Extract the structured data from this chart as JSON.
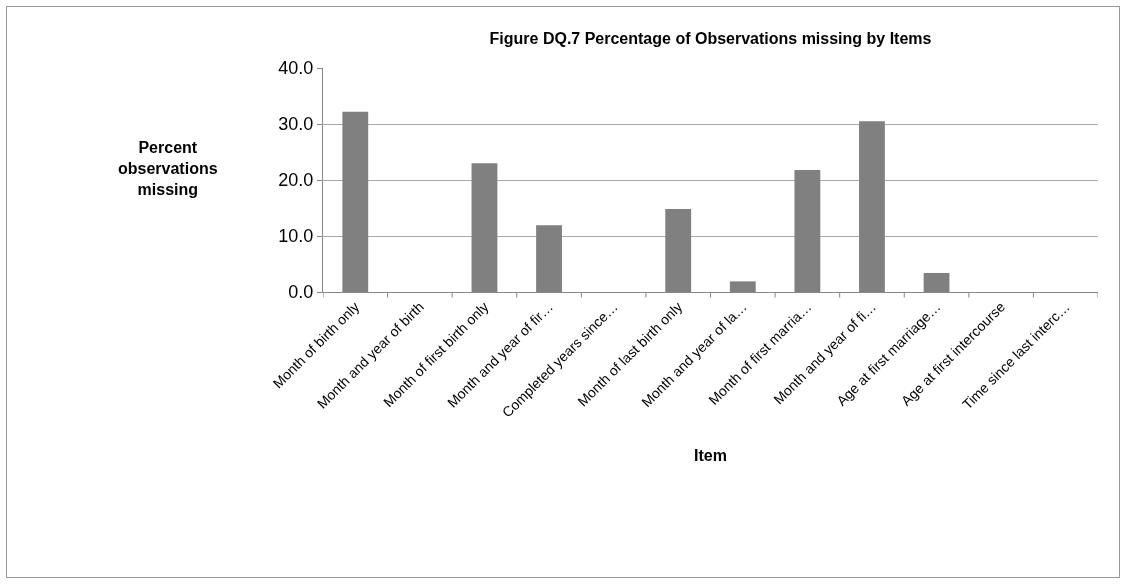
{
  "chart_data": {
    "type": "bar",
    "title": "Figure DQ.7 Percentage of Observations missing by Items",
    "xlabel": "Item",
    "ylabel": "Percent observations missing",
    "categories": [
      "Month of birth only",
      "Month and year of birth",
      "Month of first birth only",
      "Month and year of fir…",
      "Completed years since…",
      "Month of last birth only",
      "Month and year of la…",
      "Month of first marria…",
      "Month and year of fi…",
      "Age at first marriage…",
      "Age at first intercourse",
      "Time since last interc…"
    ],
    "values": [
      32.2,
      0,
      23.0,
      11.9,
      0,
      14.8,
      1.9,
      21.8,
      30.5,
      3.4,
      0,
      0
    ],
    "color": "#808080",
    "ylim": [
      0,
      40
    ],
    "yticks": [
      {
        "value": 0,
        "label": "0.0"
      },
      {
        "value": 10,
        "label": "10.0"
      },
      {
        "value": 20,
        "label": "20.0"
      },
      {
        "value": 30,
        "label": "30.0"
      },
      {
        "value": 40,
        "label": "40.0"
      }
    ],
    "grid": "y",
    "legend": false
  }
}
